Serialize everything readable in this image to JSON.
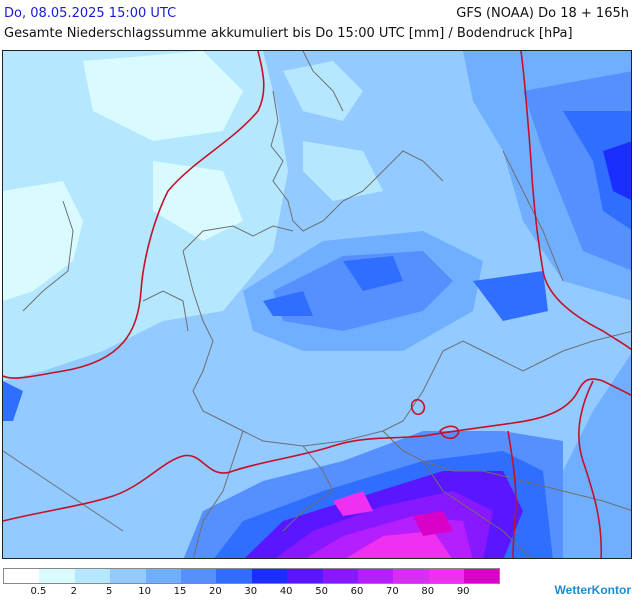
{
  "header": {
    "date": "Do, 08.05.2025 15:00 UTC",
    "model": "GFS (NOAA) Do 18 + 165h",
    "subtitle": "Gesamte Niederschlagssumme akkumuliert bis Do 15:00 UTC [mm] / Bodendruck [hPa]"
  },
  "legend": {
    "colors": [
      "#ffffff",
      "#d9fbff",
      "#b5e8ff",
      "#93caff",
      "#70afff",
      "#5690ff",
      "#2f6eff",
      "#1a2eff",
      "#5a16ff",
      "#8718ff",
      "#b51eff",
      "#d72df5",
      "#f030f0",
      "#d900c8"
    ],
    "labels": [
      "0.5",
      "2",
      "5",
      "10",
      "15",
      "20",
      "30",
      "40",
      "50",
      "60",
      "70",
      "80",
      "90"
    ]
  },
  "brand": "WetterKontor",
  "map": {
    "border_color": "#6e6e72",
    "isobar_color": "#c4102a"
  }
}
